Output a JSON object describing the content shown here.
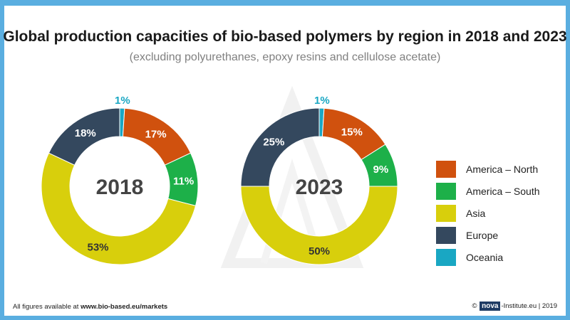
{
  "title": "Global production capacities of bio-based polymers by region in 2018 and 2023",
  "subtitle": "(excluding polyurethanes, epoxy resins and cellulose acetate)",
  "footer": {
    "prefix": "All figures available at ",
    "link": "www.bio-based.eu/markets",
    "copyright": "©",
    "logo": "nova",
    "org": "-Institute.eu | 2019"
  },
  "colors": {
    "America – North": "#d0510e",
    "America – South": "#1db049",
    "Asia": "#d8cf0c",
    "Europe": "#34485e",
    "Oceania": "#19a7c3"
  },
  "chart_data": [
    {
      "type": "pie",
      "center_label": "2018",
      "categories": [
        "Oceania",
        "America – North",
        "America – South",
        "Asia",
        "Europe"
      ],
      "values": [
        1,
        17,
        11,
        53,
        18
      ],
      "labels": [
        "1%",
        "17%",
        "11%",
        "53%",
        "18%"
      ]
    },
    {
      "type": "pie",
      "center_label": "2023",
      "categories": [
        "Oceania",
        "America – North",
        "America – South",
        "Asia",
        "Europe"
      ],
      "values": [
        1,
        15,
        9,
        50,
        25
      ],
      "labels": [
        "1%",
        "15%",
        "9%",
        "50%",
        "25%"
      ]
    }
  ],
  "legend": [
    "America – North",
    "America – South",
    "Asia",
    "Europe",
    "Oceania"
  ]
}
